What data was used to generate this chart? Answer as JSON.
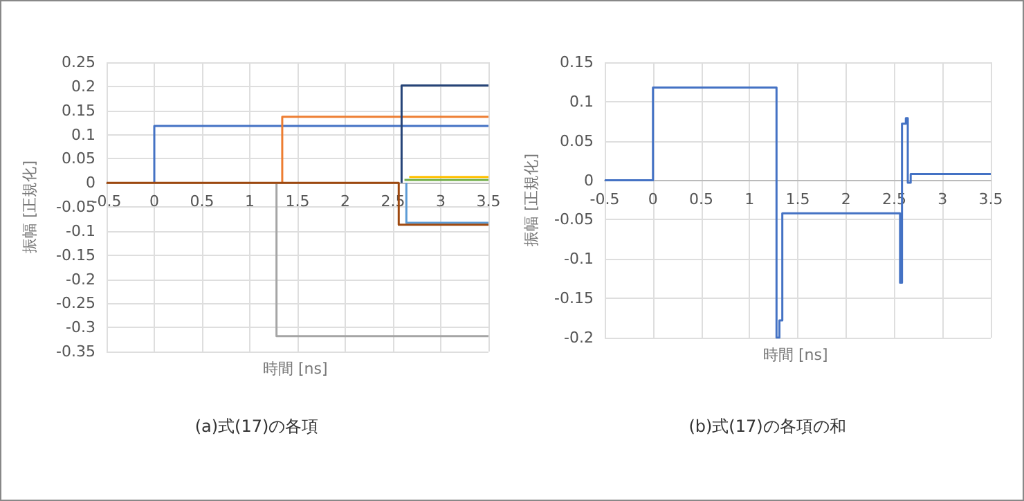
{
  "chart_data": [
    {
      "type": "step",
      "title": "(a)式(17)の各項",
      "xlabel": "時間 [ns]",
      "ylabel": "振幅 [正規化]",
      "xlim": [
        -0.5,
        3.5
      ],
      "xticks": [
        -0.5,
        0,
        0.5,
        1,
        1.5,
        2,
        2.5,
        3,
        3.5
      ],
      "ylim": [
        -0.35,
        0.25
      ],
      "yticks": [
        -0.35,
        -0.3,
        -0.25,
        -0.2,
        -0.15,
        -0.1,
        -0.05,
        0,
        0.05,
        0.1,
        0.15,
        0.2,
        0.25
      ],
      "grid": true,
      "marker": "none",
      "line_style": "solid",
      "series": [
        {
          "color": "#4472c4",
          "x": [
            0,
            0,
            3.5
          ],
          "values": [
            0,
            0.118,
            0.118
          ]
        },
        {
          "color": "#ed7d31",
          "x": [
            1.34,
            1.34,
            3.5
          ],
          "values": [
            0,
            0.137,
            0.137
          ]
        },
        {
          "color": "#a5a5a5",
          "x": [
            1.28,
            1.28,
            3.5
          ],
          "values": [
            0,
            -0.318,
            -0.318
          ]
        },
        {
          "color": "#264478",
          "x": [
            2.59,
            2.59,
            3.5
          ],
          "values": [
            0,
            0.202,
            0.202
          ]
        },
        {
          "color": "#ffc000",
          "x": [
            2.67,
            3.5
          ],
          "values": [
            0.012,
            0.012
          ]
        },
        {
          "color": "#70ad47",
          "x": [
            2.62,
            3.5
          ],
          "values": [
            0.006,
            0.006
          ]
        },
        {
          "color": "#5b9bd5",
          "x": [
            2.64,
            2.64,
            3.5
          ],
          "values": [
            0,
            -0.083,
            -0.083
          ]
        },
        {
          "color": "#9e480e",
          "x": [
            -0.5,
            2.56,
            3.5
          ],
          "values": [
            0,
            -0.087,
            -0.087
          ]
        }
      ]
    },
    {
      "type": "step",
      "title": "(b)式(17)の各項の和",
      "xlabel": "時間 [ns]",
      "ylabel": "振幅 [正規化]",
      "xlim": [
        -0.5,
        3.5
      ],
      "xticks": [
        -0.5,
        0,
        0.5,
        1,
        1.5,
        2,
        2.5,
        3,
        3.5
      ],
      "ylim": [
        -0.2,
        0.15
      ],
      "yticks": [
        -0.2,
        -0.15,
        -0.1,
        -0.05,
        0,
        0.05,
        0.1,
        0.15
      ],
      "grid": true,
      "marker": "none",
      "line_style": "solid",
      "series": [
        {
          "color": "#4472c4",
          "x": [
            -0.5,
            0,
            1.28,
            1.31,
            1.34,
            2.56,
            2.58,
            2.62,
            2.64,
            2.67,
            3.5
          ],
          "values": [
            0,
            0.118,
            -0.2,
            -0.178,
            -0.042,
            -0.13,
            0.072,
            0.079,
            -0.003,
            0.008,
            0.008
          ]
        }
      ]
    }
  ]
}
